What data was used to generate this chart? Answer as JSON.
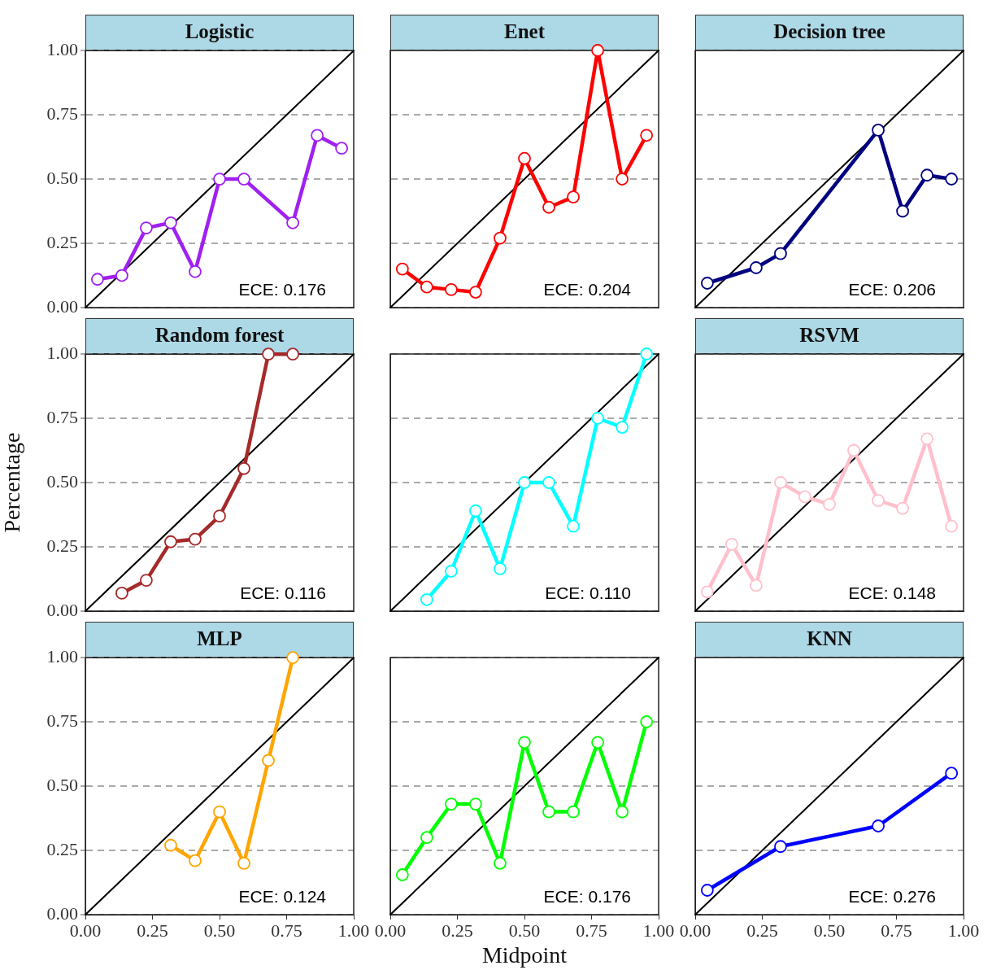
{
  "chart_data": [
    {
      "type": "line",
      "title": "Logistic",
      "xlim": [
        0,
        1
      ],
      "ylim": [
        0,
        1
      ],
      "yticks": [
        {
          "value": 0,
          "label": "0.00"
        },
        {
          "value": 0.25,
          "label": "0.25"
        },
        {
          "value": 0.5,
          "label": "0.50"
        },
        {
          "value": 0.75,
          "label": "0.75"
        },
        {
          "value": 1,
          "label": "1.00"
        }
      ],
      "tick_labels": "y",
      "grid": "y",
      "marker": "circle",
      "annotations": [
        "ECE: 0.176"
      ],
      "series": [
        {
          "color": "#a020f0",
          "x": [
            0.045,
            0.136,
            0.227,
            0.318,
            0.409,
            0.5,
            0.591,
            0.773,
            0.864,
            0.955
          ],
          "values": [
            0.11,
            0.125,
            0.31,
            0.33,
            0.14,
            0.5,
            0.5,
            0.33,
            0.67,
            0.62
          ]
        },
        {
          "type": "line",
          "color": "#000000",
          "marker": "none",
          "x": [
            0,
            1
          ],
          "values": [
            0,
            1
          ]
        }
      ]
    },
    {
      "type": "line",
      "title": "Enet",
      "xlim": [
        0,
        1
      ],
      "ylim": [
        0,
        1
      ],
      "yticks": [
        0,
        0.25,
        0.5,
        0.75,
        1
      ],
      "tick_labels": false,
      "grid": "y",
      "marker": "circle",
      "annotations": [
        "ECE: 0.204"
      ],
      "series": [
        {
          "color": "#ff0000",
          "x": [
            0.045,
            0.136,
            0.227,
            0.318,
            0.409,
            0.5,
            0.591,
            0.682,
            0.773,
            0.864,
            0.955
          ],
          "values": [
            0.15,
            0.08,
            0.07,
            0.06,
            0.27,
            0.58,
            0.39,
            0.43,
            1.0,
            0.5,
            0.67
          ]
        },
        {
          "type": "line",
          "color": "#000000",
          "marker": "none",
          "x": [
            0,
            1
          ],
          "values": [
            0,
            1
          ]
        }
      ]
    },
    {
      "type": "line",
      "title": "Decision tree",
      "xlim": [
        0,
        1
      ],
      "ylim": [
        0,
        1
      ],
      "yticks": [
        0,
        0.25,
        0.5,
        0.75,
        1
      ],
      "tick_labels": false,
      "grid": "y",
      "marker": "circle",
      "annotations": [
        "ECE: 0.206"
      ],
      "series": [
        {
          "color": "#000080",
          "x": [
            0.045,
            0.227,
            0.318,
            0.682,
            0.773,
            0.864,
            0.955
          ],
          "values": [
            0.095,
            0.155,
            0.21,
            0.69,
            0.375,
            0.515,
            0.5
          ]
        },
        {
          "type": "line",
          "color": "#000000",
          "marker": "none",
          "x": [
            0,
            1
          ],
          "values": [
            0,
            1
          ]
        }
      ]
    },
    {
      "type": "line",
      "title": "Random forest",
      "ylabel": "Percentage",
      "xlim": [
        0,
        1
      ],
      "ylim": [
        0,
        1
      ],
      "yticks": [
        {
          "value": 0,
          "label": "0.00"
        },
        {
          "value": 0.25,
          "label": "0.25"
        },
        {
          "value": 0.5,
          "label": "0.50"
        },
        {
          "value": 0.75,
          "label": "0.75"
        },
        {
          "value": 1,
          "label": "1.00"
        }
      ],
      "tick_labels": "y",
      "grid": "y",
      "marker": "circle",
      "annotations": [
        "ECE: 0.116"
      ],
      "series": [
        {
          "color": "#a52a2a",
          "x": [
            0.136,
            0.227,
            0.318,
            0.409,
            0.5,
            0.591,
            0.682,
            0.773
          ],
          "values": [
            0.07,
            0.12,
            0.27,
            0.28,
            0.37,
            0.555,
            1.0,
            1.0
          ]
        },
        {
          "type": "line",
          "color": "#000000",
          "marker": "none",
          "x": [
            0,
            1
          ],
          "values": [
            0,
            1
          ]
        }
      ]
    },
    {
      "type": "line",
      "xlim": [
        0,
        1
      ],
      "ylim": [
        0,
        1
      ],
      "yticks": [
        0,
        0.25,
        0.5,
        0.75,
        1
      ],
      "tick_labels": false,
      "grid": "y",
      "marker": "circle",
      "annotations": [
        "ECE: 0.110"
      ],
      "series": [
        {
          "color": "#00ffff",
          "x": [
            0.136,
            0.227,
            0.318,
            0.409,
            0.5,
            0.591,
            0.682,
            0.773,
            0.864,
            0.955
          ],
          "values": [
            0.045,
            0.155,
            0.39,
            0.165,
            0.5,
            0.5,
            0.33,
            0.75,
            0.715,
            1.0
          ]
        },
        {
          "type": "line",
          "color": "#000000",
          "marker": "none",
          "x": [
            0,
            1
          ],
          "values": [
            0,
            1
          ]
        }
      ]
    },
    {
      "type": "line",
      "title": "RSVM",
      "xlim": [
        0,
        1
      ],
      "ylim": [
        0,
        1
      ],
      "yticks": [
        0,
        0.25,
        0.5,
        0.75,
        1
      ],
      "tick_labels": false,
      "grid": "y",
      "marker": "circle",
      "annotations": [
        "ECE: 0.148"
      ],
      "series": [
        {
          "color": "#ffc0cb",
          "x": [
            0.045,
            0.136,
            0.227,
            0.318,
            0.409,
            0.5,
            0.591,
            0.682,
            0.773,
            0.864,
            0.955
          ],
          "values": [
            0.075,
            0.26,
            0.1,
            0.5,
            0.445,
            0.415,
            0.625,
            0.43,
            0.4,
            0.67,
            0.33
          ]
        },
        {
          "type": "line",
          "color": "#000000",
          "marker": "none",
          "x": [
            0,
            1
          ],
          "values": [
            0,
            1
          ]
        }
      ]
    },
    {
      "type": "line",
      "title": "MLP",
      "xlim": [
        0,
        1
      ],
      "ylim": [
        0,
        1
      ],
      "xticks": [
        {
          "value": 0,
          "label": "0.00"
        },
        {
          "value": 0.25,
          "label": "0.25"
        },
        {
          "value": 0.5,
          "label": "0.50"
        },
        {
          "value": 0.75,
          "label": "0.75"
        },
        {
          "value": 1,
          "label": "1.00"
        }
      ],
      "yticks": [
        {
          "value": 0,
          "label": "0.00"
        },
        {
          "value": 0.25,
          "label": "0.25"
        },
        {
          "value": 0.5,
          "label": "0.50"
        },
        {
          "value": 0.75,
          "label": "0.75"
        },
        {
          "value": 1,
          "label": "1.00"
        }
      ],
      "grid": "y",
      "marker": "circle",
      "annotations": [
        "ECE: 0.124"
      ],
      "series": [
        {
          "color": "#ffa500",
          "x": [
            0.318,
            0.409,
            0.5,
            0.591,
            0.682,
            0.773
          ],
          "values": [
            0.27,
            0.21,
            0.4,
            0.2,
            0.6,
            1.0
          ]
        },
        {
          "type": "line",
          "color": "#000000",
          "marker": "none",
          "x": [
            0,
            1
          ],
          "values": [
            0,
            1
          ]
        }
      ]
    },
    {
      "type": "line",
      "xlabel": "Midpoint",
      "xlim": [
        0,
        1
      ],
      "ylim": [
        0,
        1
      ],
      "xticks": [
        {
          "value": 0,
          "label": "0.00"
        },
        {
          "value": 0.25,
          "label": "0.25"
        },
        {
          "value": 0.5,
          "label": "0.50"
        },
        {
          "value": 0.75,
          "label": "0.75"
        },
        {
          "value": 1,
          "label": "1.00"
        }
      ],
      "yticks": [
        0,
        0.25,
        0.5,
        0.75,
        1
      ],
      "tick_labels": "x",
      "grid": "y",
      "marker": "circle",
      "annotations": [
        "ECE: 0.176"
      ],
      "series": [
        {
          "color": "#00ff00",
          "x": [
            0.045,
            0.136,
            0.227,
            0.318,
            0.409,
            0.5,
            0.591,
            0.682,
            0.773,
            0.864,
            0.955
          ],
          "values": [
            0.155,
            0.3,
            0.43,
            0.43,
            0.2,
            0.67,
            0.4,
            0.4,
            0.67,
            0.4,
            0.75
          ]
        },
        {
          "type": "line",
          "color": "#000000",
          "marker": "none",
          "x": [
            0,
            1
          ],
          "values": [
            0,
            1
          ]
        }
      ]
    },
    {
      "type": "line",
      "title": "KNN",
      "xlim": [
        0,
        1
      ],
      "ylim": [
        0,
        1
      ],
      "xticks": [
        {
          "value": 0,
          "label": "0.00"
        },
        {
          "value": 0.25,
          "label": "0.25"
        },
        {
          "value": 0.5,
          "label": "0.50"
        },
        {
          "value": 0.75,
          "label": "0.75"
        },
        {
          "value": 1,
          "label": "1.00"
        }
      ],
      "yticks": [
        0,
        0.25,
        0.5,
        0.75,
        1
      ],
      "tick_labels": "x",
      "grid": "y",
      "marker": "circle",
      "annotations": [
        "ECE: 0.276"
      ],
      "series": [
        {
          "color": "#0000ff",
          "x": [
            0.045,
            0.318,
            0.682,
            0.955
          ],
          "values": [
            0.095,
            0.265,
            0.345,
            0.55
          ]
        },
        {
          "type": "line",
          "color": "#000000",
          "marker": "none",
          "x": [
            0,
            1
          ],
          "values": [
            0,
            1
          ]
        }
      ]
    }
  ]
}
